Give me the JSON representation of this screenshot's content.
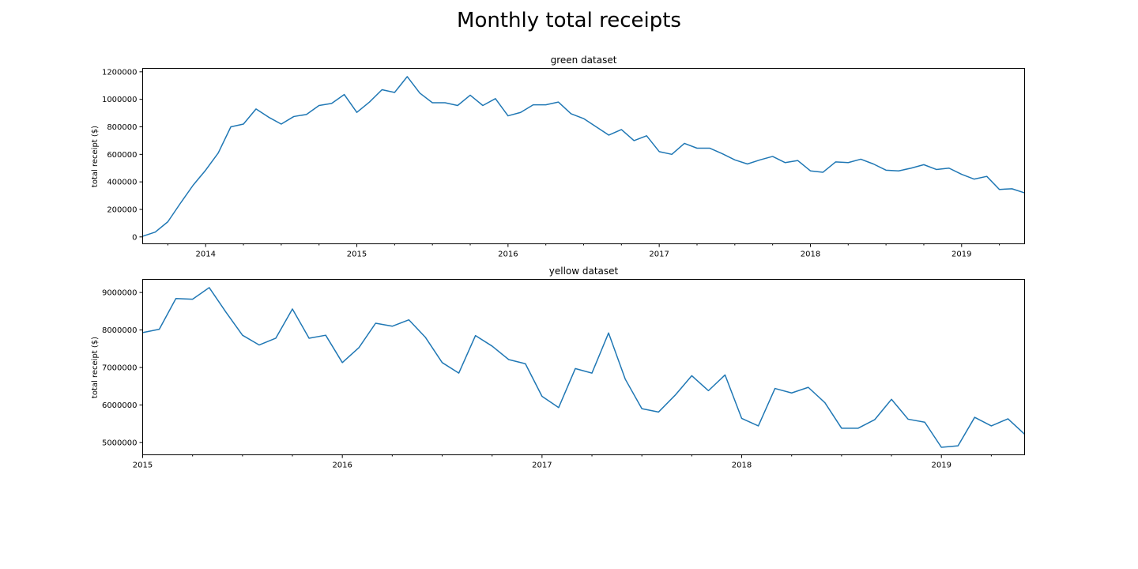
{
  "figure_title": "Monthly total receipts",
  "chart_data": [
    {
      "type": "line",
      "title": "green dataset",
      "ylabel": "total receipt ($)",
      "xlabel": "",
      "grid": false,
      "ylim": [
        -50000,
        1225000
      ],
      "yticks": [
        0,
        200000,
        400000,
        600000,
        800000,
        1000000,
        1200000
      ],
      "ytick_labels": [
        "0",
        "200000",
        "400000",
        "600000",
        "800000",
        "1000000",
        "1200000"
      ],
      "xlim": [
        "2013-08",
        "2019-06"
      ],
      "x_major_ticks": [
        "2014-01",
        "2015-01",
        "2016-01",
        "2017-01",
        "2018-01",
        "2019-01"
      ],
      "x_major_labels": [
        "2014",
        "2015",
        "2016",
        "2017",
        "2018",
        "2019"
      ],
      "series": [
        {
          "color": "#1f77b4",
          "x_start": "2013-08",
          "frequency": "monthly",
          "values": [
            5000,
            35000,
            110000,
            245000,
            375000,
            485000,
            610000,
            800000,
            820000,
            930000,
            870000,
            820000,
            875000,
            890000,
            955000,
            970000,
            1035000,
            905000,
            980000,
            1070000,
            1050000,
            1165000,
            1045000,
            975000,
            975000,
            955000,
            1030000,
            955000,
            1005000,
            880000,
            905000,
            960000,
            960000,
            980000,
            895000,
            860000,
            800000,
            740000,
            780000,
            700000,
            735000,
            620000,
            600000,
            680000,
            645000,
            645000,
            605000,
            560000,
            530000,
            560000,
            585000,
            540000,
            555000,
            480000,
            470000,
            545000,
            540000,
            565000,
            530000,
            485000,
            480000,
            500000,
            525000,
            490000,
            500000,
            455000,
            420000,
            440000,
            345000,
            350000,
            320000
          ]
        }
      ]
    },
    {
      "type": "line",
      "title": "yellow dataset",
      "ylabel": "total receipt ($)",
      "xlabel": "",
      "grid": false,
      "ylim": [
        4670000,
        9350000
      ],
      "yticks": [
        5000000,
        6000000,
        7000000,
        8000000,
        9000000
      ],
      "ytick_labels": [
        "5000000",
        "6000000",
        "7000000",
        "8000000",
        "9000000"
      ],
      "xlim": [
        "2015-01",
        "2019-06"
      ],
      "x_major_ticks": [
        "2015-01",
        "2016-01",
        "2017-01",
        "2018-01",
        "2019-01"
      ],
      "x_major_labels": [
        "2015",
        "2016",
        "2017",
        "2018",
        "2019"
      ],
      "series": [
        {
          "color": "#1f77b4",
          "x_start": "2015-01",
          "frequency": "monthly",
          "values": [
            7930000,
            8020000,
            8840000,
            8820000,
            9130000,
            8480000,
            7860000,
            7600000,
            7780000,
            8560000,
            7780000,
            7860000,
            7130000,
            7530000,
            8180000,
            8100000,
            8270000,
            7800000,
            7130000,
            6850000,
            7850000,
            7570000,
            7210000,
            7100000,
            6230000,
            5930000,
            6970000,
            6850000,
            7920000,
            6690000,
            5900000,
            5810000,
            6260000,
            6780000,
            6380000,
            6800000,
            5640000,
            5440000,
            6440000,
            6320000,
            6470000,
            6060000,
            5380000,
            5380000,
            5610000,
            6150000,
            5620000,
            5540000,
            4870000,
            4910000,
            5670000,
            5440000,
            5630000,
            5220000
          ]
        }
      ]
    }
  ]
}
